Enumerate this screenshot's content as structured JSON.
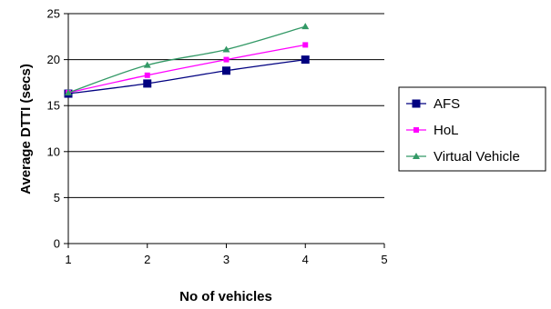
{
  "chart_data": {
    "type": "line",
    "title": "",
    "xlabel": "No of vehicles",
    "ylabel": "Average DTTI (secs)",
    "xlim": [
      1,
      5
    ],
    "ylim": [
      0,
      25
    ],
    "xticks": [
      1,
      2,
      3,
      4,
      5
    ],
    "yticks": [
      0,
      5,
      10,
      15,
      20,
      25
    ],
    "grid": "horizontal",
    "legend_position": "right",
    "series": [
      {
        "name": "AFS",
        "color": "#000080",
        "marker": "square",
        "x": [
          1,
          2,
          3,
          4
        ],
        "y": [
          16.3,
          17.4,
          18.8,
          20.0
        ]
      },
      {
        "name": "HoL",
        "color": "#ff00ff",
        "marker": "small-square",
        "x": [
          1,
          2,
          3,
          4
        ],
        "y": [
          16.4,
          18.3,
          20.0,
          21.6
        ]
      },
      {
        "name": "Virtual Vehicle",
        "color": "#339966",
        "marker": "triangle",
        "x": [
          1,
          2,
          3,
          4
        ],
        "y": [
          16.4,
          19.4,
          21.1,
          23.6
        ]
      }
    ]
  }
}
